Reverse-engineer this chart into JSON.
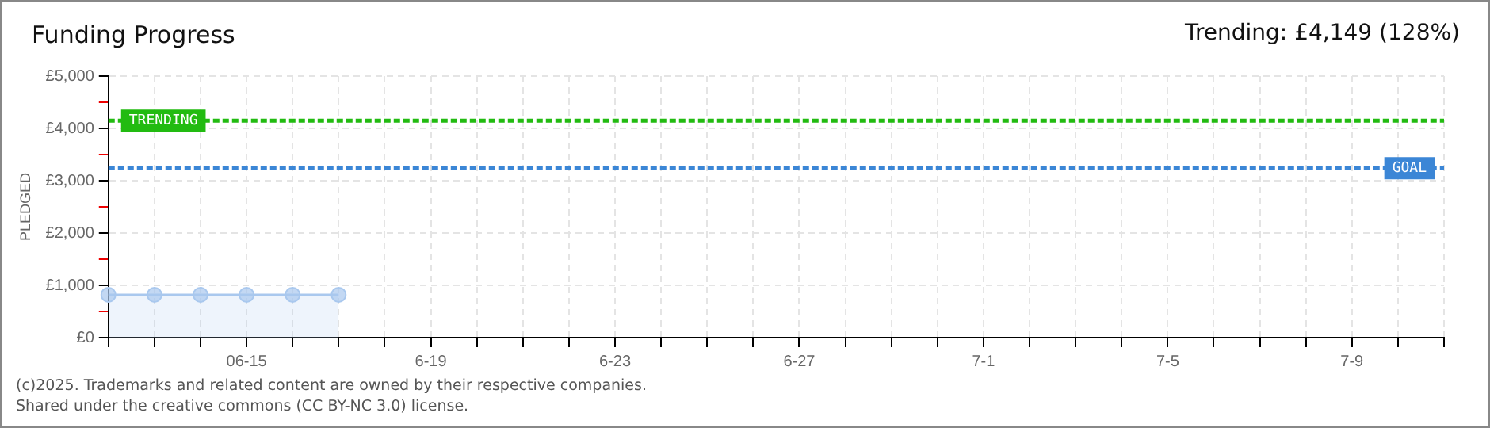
{
  "chart_data": {
    "type": "area",
    "title": "Funding Progress",
    "subtitle": "Trending: £4,149 (128%)",
    "ylabel": "PLEDGED",
    "categories": [
      null,
      null,
      null,
      "06-15",
      null,
      null,
      null,
      "6-19",
      null,
      null,
      null,
      "6-23",
      null,
      null,
      null,
      "6-27",
      null,
      null,
      null,
      "7-1",
      null,
      null,
      null,
      "7-5",
      null,
      null,
      null,
      "7-9",
      null,
      null
    ],
    "series": [
      {
        "color": "#a9c8ee",
        "values": [
          820,
          820,
          820,
          820,
          820,
          820,
          null,
          null,
          null,
          null,
          null,
          null,
          null,
          null,
          null,
          null,
          null,
          null,
          null,
          null,
          null,
          null,
          null,
          null,
          null,
          null,
          null,
          null,
          null,
          null
        ]
      }
    ],
    "ylim": [
      0,
      5000
    ],
    "yticks": [
      {
        "value": 0,
        "label": "£0"
      },
      {
        "value": 500,
        "label": null
      },
      {
        "value": 1000,
        "label": "£1,000"
      },
      {
        "value": 1500,
        "label": null
      },
      {
        "value": 2000,
        "label": "£2,000"
      },
      {
        "value": 2500,
        "label": null
      },
      {
        "value": 3000,
        "label": "£3,000"
      },
      {
        "value": 3500,
        "label": null
      },
      {
        "value": 4000,
        "label": "£4,000"
      },
      {
        "value": 4500,
        "label": null
      },
      {
        "value": 5000,
        "label": "£5,000"
      }
    ],
    "ref_lines": [
      {
        "axis": "y",
        "value": 4149,
        "label": "TRENDING",
        "color": "#22bb11",
        "line_style": "dashed"
      },
      {
        "axis": "y",
        "value": 3240,
        "label": "GOAL",
        "color": "#3b86d6",
        "line_style": "dashed"
      }
    ],
    "grid": true,
    "legend": false,
    "marker": "circle",
    "annotations": [
      "(c)2025. Trademarks and related content are owned by their respective companies.",
      "Shared under the creative commons (CC BY-NC 3.0) license."
    ]
  }
}
